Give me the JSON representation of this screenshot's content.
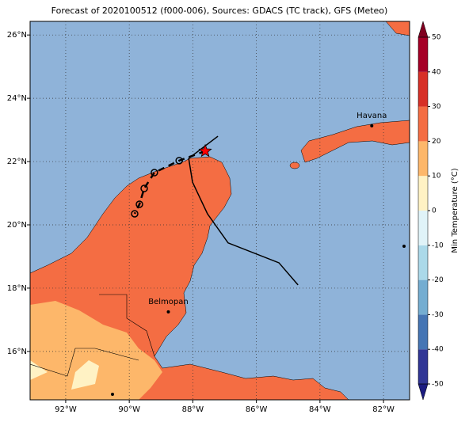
{
  "chart_data": {
    "type": "map",
    "title": "Forecast of 2020100512 (f000-006), Sources: GDACS (TC track), GFS (Meteo)",
    "xlim": [
      -93.12,
      -81.18
    ],
    "ylim": [
      14.47,
      26.43
    ],
    "xticks": [
      {
        "value": -92,
        "label": "92°W"
      },
      {
        "value": -90,
        "label": "90°W"
      },
      {
        "value": -88,
        "label": "88°W"
      },
      {
        "value": -86,
        "label": "86°W"
      },
      {
        "value": -84,
        "label": "84°W"
      },
      {
        "value": -82,
        "label": "82°W"
      }
    ],
    "yticks": [
      {
        "value": 16,
        "label": "16°N"
      },
      {
        "value": 18,
        "label": "18°N"
      },
      {
        "value": 20,
        "label": "20°N"
      },
      {
        "value": 22,
        "label": "22°N"
      },
      {
        "value": 24,
        "label": "24°N"
      },
      {
        "value": 26,
        "label": "26°N"
      }
    ],
    "grid": true,
    "colorbar": {
      "label": "Min Temperature (°C)",
      "lim": [
        -50,
        50
      ],
      "ticks": [
        -50,
        -40,
        -30,
        -20,
        -10,
        0,
        10,
        20,
        30,
        40,
        50
      ],
      "colors": [
        "#313695",
        "#4575b4",
        "#74add1",
        "#abd9e9",
        "#e0f3f8",
        "#fff2c4",
        "#fdb76a",
        "#f46d43",
        "#d73027",
        "#a50026"
      ],
      "under_color": "#1c1c80",
      "over_color": "#800020"
    },
    "track_observed": {
      "lon": [
        -84.69,
        -85.29,
        -86.89,
        -87.54,
        -88.01,
        -88.13,
        -87.21
      ],
      "lat": [
        18.1,
        18.8,
        19.43,
        20.35,
        21.35,
        22.1,
        22.8
      ],
      "color": "#000000"
    },
    "track_forecast": {
      "lon": [
        -87.61,
        -88.43,
        -89.21,
        -89.53,
        -89.68,
        -89.83
      ],
      "lat": [
        22.33,
        22.03,
        21.65,
        21.15,
        20.65,
        20.35
      ],
      "color": "#000000"
    },
    "current": {
      "lon": -87.61,
      "lat": 22.33,
      "color": "#ff0000"
    },
    "cities": [
      {
        "name": "Havana",
        "lon": -82.37,
        "lat": 23.13
      },
      {
        "name": "Belmopan",
        "lon": -88.77,
        "lat": 17.25
      }
    ]
  }
}
